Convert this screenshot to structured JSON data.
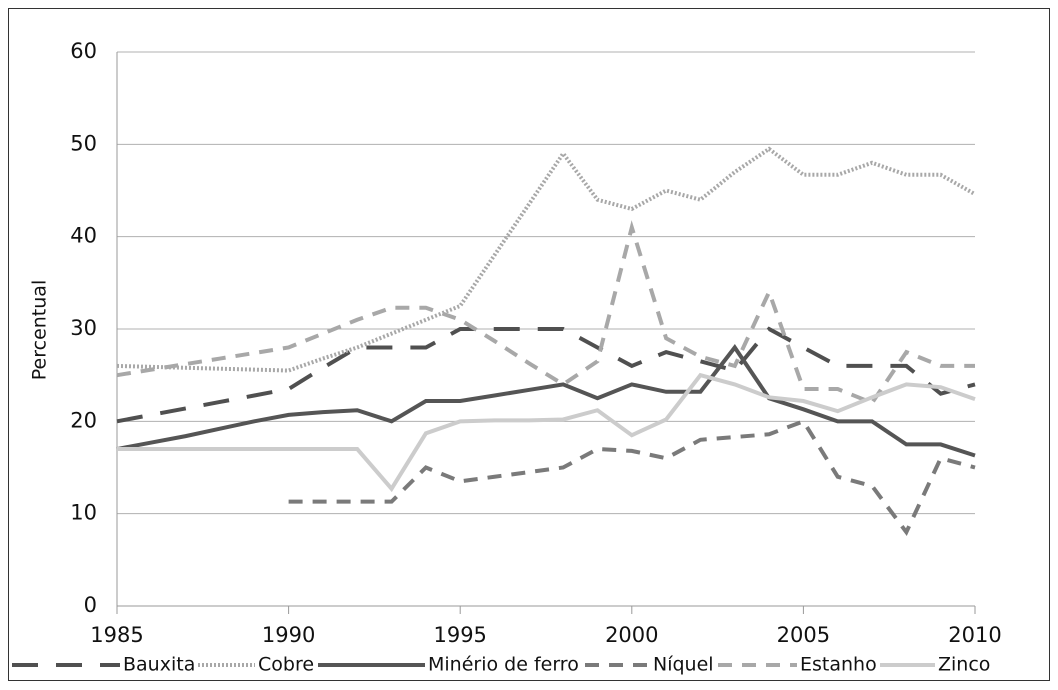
{
  "chart_data": {
    "type": "line",
    "ylabel": "Percentual",
    "x": [
      1985,
      1986,
      1987,
      1988,
      1989,
      1990,
      1991,
      1992,
      1993,
      1994,
      1995,
      1996,
      1997,
      1998,
      1999,
      2000,
      2001,
      2002,
      2003,
      2004,
      2005,
      2006,
      2007,
      2008,
      2009,
      2010
    ],
    "xlim": [
      1985,
      2010
    ],
    "xticks": [
      1985,
      1990,
      1995,
      2000,
      2005,
      2010
    ],
    "ylim": [
      0,
      60
    ],
    "yticks": [
      0,
      10,
      20,
      30,
      40,
      50,
      60
    ],
    "grid": true,
    "legend": "bottom",
    "series": [
      {
        "name": "Bauxita",
        "color": "#505050",
        "style": "longdash",
        "values": [
          20,
          20.7,
          21.4,
          22.1,
          22.8,
          23.5,
          25.8,
          28,
          28,
          28,
          30,
          30,
          30,
          30,
          28,
          26,
          27.5,
          26.5,
          25.5,
          30,
          28,
          26,
          26,
          26,
          23,
          24
        ]
      },
      {
        "name": "Cobre",
        "color": "#a8a8a8",
        "style": "dotted",
        "values": [
          26,
          25.9,
          25.8,
          25.7,
          25.6,
          25.5,
          26.8,
          28,
          29.5,
          31,
          32.5,
          38,
          43.5,
          49,
          44,
          43,
          45,
          44,
          47,
          49.5,
          46.7,
          46.7,
          48,
          46.7,
          46.7,
          44.6
        ]
      },
      {
        "name": "Minério de ferro",
        "color": "#555555",
        "style": "solid",
        "values": [
          17,
          17.7,
          18.4,
          19.2,
          20,
          20.7,
          21,
          21.2,
          20,
          22.2,
          22.2,
          22.8,
          23.4,
          24,
          22.5,
          24,
          23.2,
          23.2,
          28,
          22.5,
          21.3,
          20,
          20,
          17.5,
          17.5,
          16.3
        ]
      },
      {
        "name": "Níquel",
        "color": "#7a7a7a",
        "style": "dashed",
        "values": [
          null,
          null,
          null,
          null,
          null,
          11.3,
          11.3,
          11.3,
          11.3,
          15,
          13.5,
          14,
          14.5,
          15,
          17,
          16.8,
          16,
          18,
          18.3,
          18.6,
          20,
          14,
          13,
          8,
          16,
          15
        ]
      },
      {
        "name": "Estanho",
        "color": "#a8a8a8",
        "style": "dashed",
        "values": [
          25,
          25.6,
          26.2,
          26.8,
          27.4,
          28,
          29.5,
          31,
          32.3,
          32.3,
          31,
          28.7,
          26.3,
          24,
          26.5,
          41,
          29,
          27,
          26,
          34,
          23.5,
          23.5,
          22,
          27.5,
          26,
          26
        ]
      },
      {
        "name": "Zinco",
        "color": "#cccccc",
        "style": "solid",
        "values": [
          17,
          17,
          17,
          17,
          17,
          17,
          17,
          17,
          12.7,
          18.7,
          20,
          20.1,
          20.1,
          20.2,
          21.2,
          18.5,
          20.2,
          25,
          24,
          22.6,
          22.2,
          21.1,
          22.6,
          24,
          23.7,
          22.4
        ]
      }
    ]
  }
}
